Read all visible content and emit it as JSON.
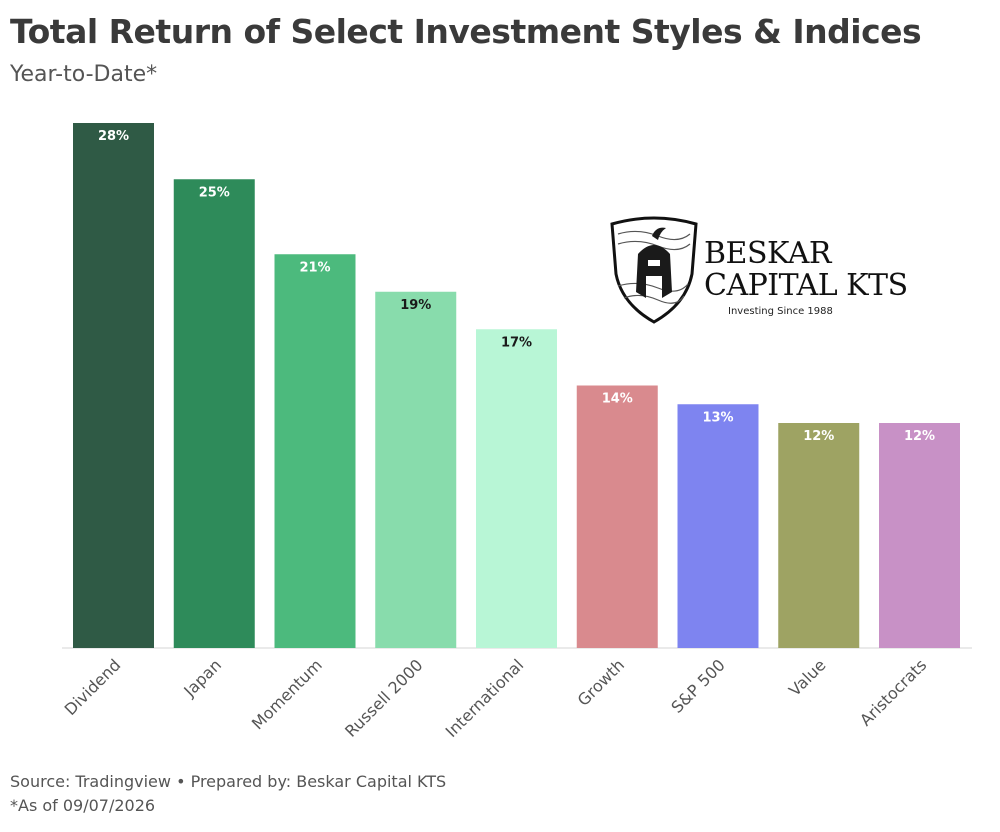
{
  "header": {
    "title": "Total Return of Select Investment Styles & Indices",
    "subtitle": "Year-to-Date*"
  },
  "footer": {
    "source": "Source: Tradingview • Prepared by: Beskar Capital KTS",
    "note": "*As of 09/07/2026"
  },
  "logo": {
    "line1": "BESKAR",
    "line2": "CAPITAL KTS",
    "tagline": "Investing Since 1988",
    "icon": "spartan-helmet-shield-icon"
  },
  "chart_data": {
    "type": "bar",
    "title": "Total Return of Select Investment Styles & Indices",
    "subtitle": "Year-to-Date*",
    "categories": [
      "Dividend",
      "Japan",
      "Momentum",
      "Russell 2000",
      "International",
      "Growth",
      "S&P 500",
      "Value",
      "Aristocrats"
    ],
    "values": [
      28,
      25,
      21,
      19,
      17,
      14,
      13,
      12,
      12
    ],
    "value_labels": [
      "28%",
      "25%",
      "21%",
      "19%",
      "17%",
      "14%",
      "13%",
      "12%",
      "12%"
    ],
    "colors": [
      "#2f5a45",
      "#2e8b5a",
      "#4cba7d",
      "#88dcac",
      "#b8f6d6",
      "#d98a8e",
      "#7e84f0",
      "#9ea363",
      "#c891c6"
    ],
    "label_colors": [
      "#ffffff",
      "#ffffff",
      "#ffffff",
      "#1a1a1a",
      "#1a1a1a",
      "#ffffff",
      "#ffffff",
      "#ffffff",
      "#ffffff"
    ],
    "xlabel": "",
    "ylabel": "",
    "ylim": [
      0,
      28
    ],
    "grid": false,
    "legend": "none"
  }
}
